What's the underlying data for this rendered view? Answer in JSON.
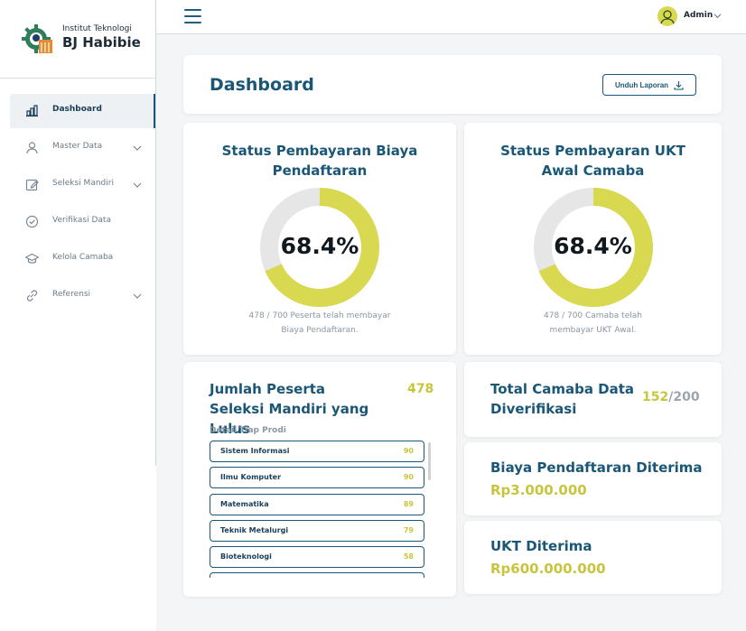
{
  "brand": {
    "line1": "Institut Teknologi",
    "line2": "BJ Habibie"
  },
  "sidebar": {
    "items": [
      {
        "label": "Dashboard",
        "icon": "bar-chart-icon",
        "active": true,
        "has_submenu": false
      },
      {
        "label": "Master Data",
        "icon": "user-icon",
        "active": false,
        "has_submenu": true
      },
      {
        "label": "Seleksi Mandiri",
        "icon": "edit-icon",
        "active": false,
        "has_submenu": true
      },
      {
        "label": "Verifikasi Data",
        "icon": "check-circle-icon",
        "active": false,
        "has_submenu": false
      },
      {
        "label": "Kelola Camaba",
        "icon": "graduation-cap-icon",
        "active": false,
        "has_submenu": false
      },
      {
        "label": "Referensi",
        "icon": "link-icon",
        "active": false,
        "has_submenu": true
      }
    ]
  },
  "topbar": {
    "user_name": "Admin"
  },
  "header": {
    "title": "Dashboard",
    "report_button": "Unduh Laporan"
  },
  "pendaftaran": {
    "title": "Status Pembayaran Biaya Pendaftaran",
    "percent_label": "68.4%",
    "fraction": 0.684,
    "caption": "478 / 700 Peserta telah membayar Biaya Pendaftaran."
  },
  "ukt": {
    "title": "Status Pembayaran UKT Awal Camaba",
    "percent_label": "68.4%",
    "fraction": 0.684,
    "caption": "478 / 700 Camaba telah membayar UKT Awal."
  },
  "lulus": {
    "title": "Jumlah Peserta Seleksi Mandiri yang Lulus",
    "total": "478",
    "subtitle": "Detail Tiap Prodi",
    "prodi": [
      {
        "name": "Sistem Informasi",
        "value": "90"
      },
      {
        "name": "Ilmu Komputer",
        "value": "90"
      },
      {
        "name": "Matematika",
        "value": "89"
      },
      {
        "name": "Teknik Metalurgi",
        "value": "79"
      },
      {
        "name": "Bioteknologi",
        "value": "58"
      }
    ]
  },
  "verifikasi": {
    "title": "Total Camaba Data Diverifikasi",
    "count": "152",
    "separator": "/",
    "total": "200"
  },
  "biaya": {
    "title": "Biaya Pendaftaran Diterima",
    "amount": "Rp3.000.000"
  },
  "ukt_received": {
    "title": "UKT Diterima",
    "amount": "Rp600.000.000"
  },
  "colors": {
    "primary": "#1a5776",
    "accent": "#d8d950",
    "track": "#e6e6e6"
  }
}
